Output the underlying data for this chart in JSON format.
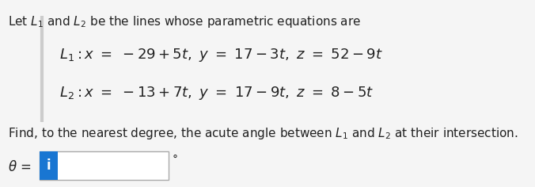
{
  "bg_color": "#f5f5f5",
  "text_color": "#222222",
  "line1_intro": "Let $L_1$ and $L_2$ be the lines whose parametric equations are",
  "line1_eq": "$L_1 : x \\ = \\ -29+5t, \\ y \\ = \\ 17-3t, \\ z \\ = \\ 52-9t$",
  "line2_eq": "$L_2 : x \\ = \\ -13+7t, \\ y \\ = \\ 17-9t, \\ z \\ = \\ 8-5t$",
  "find_text": "Find, to the nearest degree, the acute angle between $L_1$ and $L_2$ at their intersection.",
  "theta_label": "$\\theta$ =",
  "degree_symbol": "°",
  "input_box_color": "#1976d2",
  "input_box_text": "i",
  "input_box_text_color": "#ffffff",
  "border_left_color": "#cccccc",
  "font_size_intro": 11,
  "font_size_eq": 13,
  "font_size_find": 11,
  "font_size_theta": 12,
  "font_size_degree": 10
}
